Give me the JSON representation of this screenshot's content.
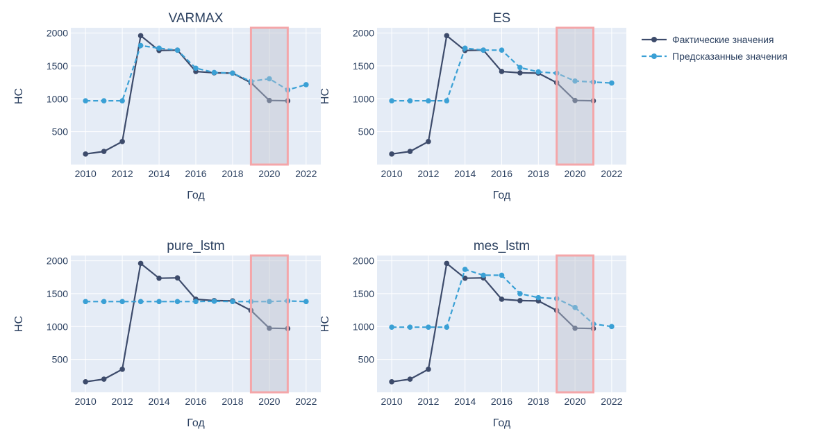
{
  "colors": {
    "actual": "#3d4b6b",
    "predicted": "#3aa0d5",
    "plot_bg": "#e5ecf6",
    "grid": "#ffffff",
    "highlight_fill": "#d9dde4",
    "highlight_border": "#f4a6a9",
    "text": "#2a3f5f"
  },
  "legend": {
    "actual_label": "Фактические значения",
    "predicted_label": "Предсказанные значения"
  },
  "chart_data": [
    {
      "type": "line",
      "title": "VARMAX",
      "xlabel": "Год",
      "ylabel": "НС",
      "xlim": [
        2009.2,
        2022.8
      ],
      "ylim": [
        0,
        2080
      ],
      "xticks": [
        2010,
        2012,
        2014,
        2016,
        2018,
        2020,
        2022
      ],
      "yticks": [
        500,
        1000,
        1500,
        2000
      ],
      "highlight_range": [
        2019,
        2021
      ],
      "series": [
        {
          "name": "Фактические значения",
          "x": [
            2010,
            2011,
            2012,
            2013,
            2014,
            2015,
            2016,
            2017,
            2018,
            2019,
            2020,
            2021
          ],
          "values": [
            160,
            200,
            350,
            1960,
            1735,
            1740,
            1415,
            1395,
            1390,
            1245,
            975,
            970
          ]
        },
        {
          "name": "Предсказанные значения",
          "x": [
            2010,
            2011,
            2012,
            2013,
            2014,
            2015,
            2016,
            2017,
            2018,
            2019,
            2020,
            2021,
            2022
          ],
          "values": [
            970,
            970,
            970,
            1810,
            1770,
            1740,
            1465,
            1400,
            1390,
            1265,
            1305,
            1135,
            1215
          ]
        }
      ]
    },
    {
      "type": "line",
      "title": "ES",
      "xlabel": "Год",
      "ylabel": "НС",
      "xlim": [
        2009.2,
        2022.8
      ],
      "ylim": [
        0,
        2080
      ],
      "xticks": [
        2010,
        2012,
        2014,
        2016,
        2018,
        2020,
        2022
      ],
      "yticks": [
        500,
        1000,
        1500,
        2000
      ],
      "highlight_range": [
        2019,
        2021
      ],
      "series": [
        {
          "name": "Фактические значения",
          "x": [
            2010,
            2011,
            2012,
            2013,
            2014,
            2015,
            2016,
            2017,
            2018,
            2019,
            2020,
            2021
          ],
          "values": [
            160,
            200,
            350,
            1960,
            1735,
            1740,
            1415,
            1395,
            1390,
            1245,
            975,
            970
          ]
        },
        {
          "name": "Предсказанные значения",
          "x": [
            2010,
            2011,
            2012,
            2013,
            2014,
            2015,
            2016,
            2017,
            2018,
            2019,
            2020,
            2021,
            2022
          ],
          "values": [
            970,
            970,
            970,
            970,
            1770,
            1740,
            1740,
            1475,
            1410,
            1390,
            1270,
            1255,
            1240
          ]
        }
      ]
    },
    {
      "type": "line",
      "title": "pure_lstm",
      "xlabel": "Год",
      "ylabel": "НС",
      "xlim": [
        2009.2,
        2022.8
      ],
      "ylim": [
        0,
        2080
      ],
      "xticks": [
        2010,
        2012,
        2014,
        2016,
        2018,
        2020,
        2022
      ],
      "yticks": [
        500,
        1000,
        1500,
        2000
      ],
      "highlight_range": [
        2019,
        2021
      ],
      "series": [
        {
          "name": "Фактические значения",
          "x": [
            2010,
            2011,
            2012,
            2013,
            2014,
            2015,
            2016,
            2017,
            2018,
            2019,
            2020,
            2021
          ],
          "values": [
            160,
            200,
            350,
            1960,
            1735,
            1740,
            1415,
            1395,
            1390,
            1245,
            975,
            970
          ]
        },
        {
          "name": "Предсказанные значения",
          "x": [
            2010,
            2011,
            2012,
            2013,
            2014,
            2015,
            2016,
            2017,
            2018,
            2019,
            2020,
            2021,
            2022
          ],
          "values": [
            1380,
            1380,
            1380,
            1380,
            1380,
            1380,
            1380,
            1385,
            1380,
            1380,
            1380,
            1390,
            1380
          ]
        }
      ]
    },
    {
      "type": "line",
      "title": "mes_lstm",
      "xlabel": "Год",
      "ylabel": "НС",
      "xlim": [
        2009.2,
        2022.8
      ],
      "ylim": [
        0,
        2080
      ],
      "xticks": [
        2010,
        2012,
        2014,
        2016,
        2018,
        2020,
        2022
      ],
      "yticks": [
        500,
        1000,
        1500,
        2000
      ],
      "highlight_range": [
        2019,
        2021
      ],
      "series": [
        {
          "name": "Фактические значения",
          "x": [
            2010,
            2011,
            2012,
            2013,
            2014,
            2015,
            2016,
            2017,
            2018,
            2019,
            2020,
            2021
          ],
          "values": [
            160,
            200,
            350,
            1960,
            1735,
            1740,
            1415,
            1395,
            1390,
            1245,
            975,
            970
          ]
        },
        {
          "name": "Предсказанные значения",
          "x": [
            2010,
            2011,
            2012,
            2013,
            2014,
            2015,
            2016,
            2017,
            2018,
            2019,
            2020,
            2021,
            2022
          ],
          "values": [
            990,
            990,
            990,
            990,
            1870,
            1780,
            1780,
            1500,
            1440,
            1425,
            1290,
            1040,
            1000
          ]
        }
      ]
    }
  ]
}
